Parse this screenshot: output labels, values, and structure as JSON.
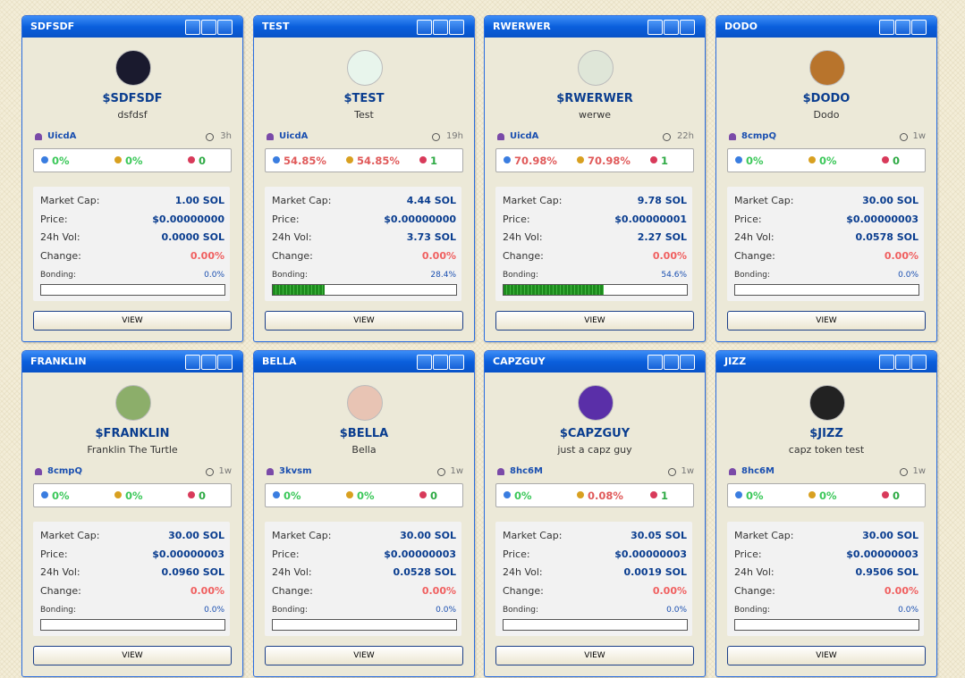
{
  "cards": [
    {
      "title": "SDFSDF",
      "symbol": "$SDFSDF",
      "description": "dsfdsf",
      "creator": "UicdA",
      "age": "3h",
      "stats": [
        "0%",
        "0%",
        "0"
      ],
      "rows": [
        [
          "Market Cap:",
          "1.00 SOL"
        ],
        [
          "Price:",
          "$0.00000000"
        ],
        [
          "24h Vol:",
          "0.0000 SOL"
        ],
        [
          "Change:",
          "0.00%"
        ]
      ],
      "bonding_label": "Bonding:",
      "bonding": "0.0%",
      "button": "VIEW",
      "avatar": "#1a1a2e"
    },
    {
      "title": "TEST",
      "symbol": "$TEST",
      "description": "Test",
      "creator": "UicdA",
      "age": "19h",
      "stats": [
        "54.85%",
        "54.85%",
        "1"
      ],
      "rows": [
        [
          "Market Cap:",
          "4.44 SOL"
        ],
        [
          "Price:",
          "$0.00000000"
        ],
        [
          "24h Vol:",
          "3.73 SOL"
        ],
        [
          "Change:",
          "0.00%"
        ]
      ],
      "bonding_label": "Bonding:",
      "bonding": "28.4%",
      "button": "VIEW",
      "avatar": "#e8f5ec"
    },
    {
      "title": "RWERWER",
      "symbol": "$RWERWER",
      "description": "werwe",
      "creator": "UicdA",
      "age": "22h",
      "stats": [
        "70.98%",
        "70.98%",
        "1"
      ],
      "rows": [
        [
          "Market Cap:",
          "9.78 SOL"
        ],
        [
          "Price:",
          "$0.00000001"
        ],
        [
          "24h Vol:",
          "2.27 SOL"
        ],
        [
          "Change:",
          "0.00%"
        ]
      ],
      "bonding_label": "Bonding:",
      "bonding": "54.6%",
      "button": "VIEW",
      "avatar": "#dfe6d8"
    },
    {
      "title": "DODO",
      "symbol": "$DODO",
      "description": "Dodo",
      "creator": "8cmpQ",
      "age": "1w",
      "stats": [
        "0%",
        "0%",
        "0"
      ],
      "rows": [
        [
          "Market Cap:",
          "30.00 SOL"
        ],
        [
          "Price:",
          "$0.00000003"
        ],
        [
          "24h Vol:",
          "0.0578 SOL"
        ],
        [
          "Change:",
          "0.00%"
        ]
      ],
      "bonding_label": "Bonding:",
      "bonding": "0.0%",
      "button": "VIEW",
      "avatar": "#b8742c"
    },
    {
      "title": "FRANKLIN",
      "symbol": "$FRANKLIN",
      "description": "Franklin The Turtle",
      "creator": "8cmpQ",
      "age": "1w",
      "stats": [
        "0%",
        "0%",
        "0"
      ],
      "rows": [
        [
          "Market Cap:",
          "30.00 SOL"
        ],
        [
          "Price:",
          "$0.00000003"
        ],
        [
          "24h Vol:",
          "0.0960 SOL"
        ],
        [
          "Change:",
          "0.00%"
        ]
      ],
      "bonding_label": "Bonding:",
      "bonding": "0.0%",
      "button": "VIEW",
      "avatar": "#8cae6a"
    },
    {
      "title": "BELLA",
      "symbol": "$BELLA",
      "description": "Bella",
      "creator": "3kvsm",
      "age": "1w",
      "stats": [
        "0%",
        "0%",
        "0"
      ],
      "rows": [
        [
          "Market Cap:",
          "30.00 SOL"
        ],
        [
          "Price:",
          "$0.00000003"
        ],
        [
          "24h Vol:",
          "0.0528 SOL"
        ],
        [
          "Change:",
          "0.00%"
        ]
      ],
      "bonding_label": "Bonding:",
      "bonding": "0.0%",
      "button": "VIEW",
      "avatar": "#e8c4b4"
    },
    {
      "title": "CAPZGUY",
      "symbol": "$CAPZGUY",
      "description": "just a capz guy",
      "creator": "8hc6M",
      "age": "1w",
      "stats": [
        "0%",
        "0.08%",
        "1"
      ],
      "rows": [
        [
          "Market Cap:",
          "30.05 SOL"
        ],
        [
          "Price:",
          "$0.00000003"
        ],
        [
          "24h Vol:",
          "0.0019 SOL"
        ],
        [
          "Change:",
          "0.00%"
        ]
      ],
      "bonding_label": "Bonding:",
      "bonding": "0.0%",
      "button": "VIEW",
      "avatar": "#5a2fa8"
    },
    {
      "title": "JIZZ",
      "symbol": "$JIZZ",
      "description": "capz token test",
      "creator": "8hc6M",
      "age": "1w",
      "stats": [
        "0%",
        "0%",
        "0"
      ],
      "rows": [
        [
          "Market Cap:",
          "30.00 SOL"
        ],
        [
          "Price:",
          "$0.00000003"
        ],
        [
          "24h Vol:",
          "0.9506 SOL"
        ],
        [
          "Change:",
          "0.00%"
        ]
      ],
      "bonding_label": "Bonding:",
      "bonding": "0.0%",
      "button": "VIEW",
      "avatar": "#222222"
    }
  ]
}
